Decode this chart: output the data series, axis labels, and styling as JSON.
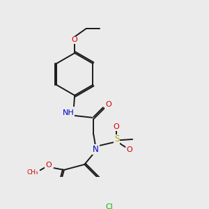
{
  "background_color": "#ebebeb",
  "bond_color": "#1a1a1a",
  "atom_colors": {
    "N": "#0000cc",
    "O": "#cc0000",
    "S": "#aaaa00",
    "Cl": "#00bb00"
  },
  "figsize": [
    3.0,
    3.0
  ],
  "dpi": 100
}
